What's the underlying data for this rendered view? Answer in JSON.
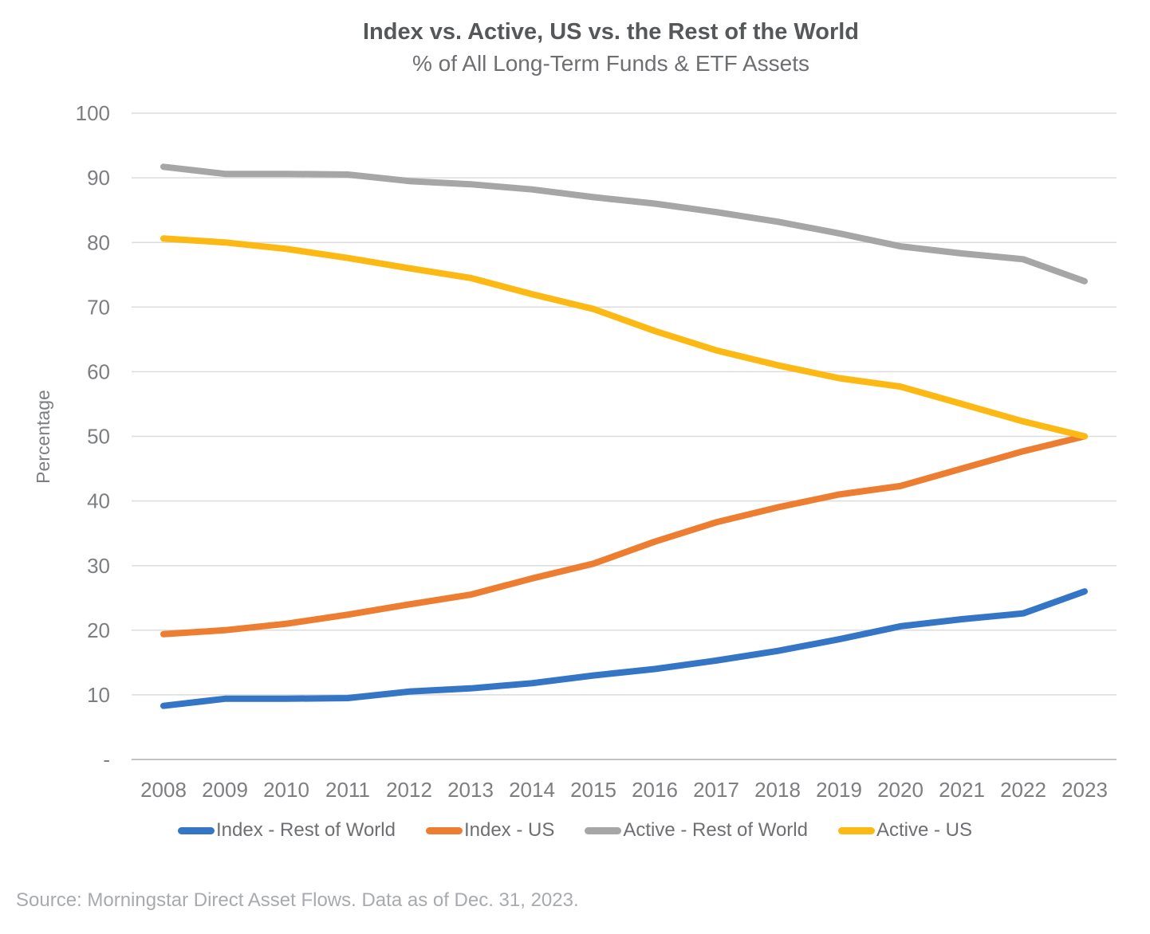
{
  "header": {
    "title": "Index vs. Active, US vs. the Rest of the World",
    "subtitle": "% of All Long-Term Funds & ETF Assets"
  },
  "chart_data": {
    "type": "line",
    "x": [
      2008,
      2009,
      2010,
      2011,
      2012,
      2013,
      2014,
      2015,
      2016,
      2017,
      2018,
      2019,
      2020,
      2021,
      2022,
      2023
    ],
    "series": [
      {
        "name": "Index - Rest of World",
        "color": "#3575C5",
        "values": [
          8.3,
          9.4,
          9.4,
          9.5,
          10.5,
          11.0,
          11.8,
          13.0,
          14.0,
          15.3,
          16.8,
          18.6,
          20.6,
          21.7,
          22.6,
          26.0
        ]
      },
      {
        "name": "Index - US",
        "color": "#ED7D31",
        "values": [
          19.4,
          20.0,
          21.0,
          22.4,
          24.0,
          25.5,
          28.0,
          30.3,
          33.7,
          36.7,
          39.0,
          41.0,
          42.3,
          45.0,
          47.7,
          50.0
        ]
      },
      {
        "name": "Active - Rest of World",
        "color": "#A6A6A6",
        "values": [
          91.7,
          90.6,
          90.6,
          90.5,
          89.5,
          89.0,
          88.2,
          87.0,
          86.0,
          84.7,
          83.2,
          81.4,
          79.4,
          78.3,
          77.4,
          74.0
        ]
      },
      {
        "name": "Active - US",
        "color": "#FDB913",
        "values": [
          80.6,
          80.0,
          79.0,
          77.6,
          76.0,
          74.5,
          72.0,
          69.7,
          66.3,
          63.3,
          61.0,
          59.0,
          57.7,
          55.0,
          52.3,
          50.0
        ]
      }
    ],
    "title": "Index vs. Active, US vs. the Rest of the World",
    "subtitle": "% of All Long-Term Funds & ETF Assets",
    "xlabel": "",
    "ylabel": "Percentage",
    "ylim": [
      0,
      100
    ],
    "ytick_step": 10,
    "ytick_zero_label": "-",
    "grid": "horizontal",
    "legend_position": "bottom"
  },
  "footer": {
    "source": "Source: Morningstar Direct Asset Flows. Data as of Dec. 31, 2023."
  }
}
